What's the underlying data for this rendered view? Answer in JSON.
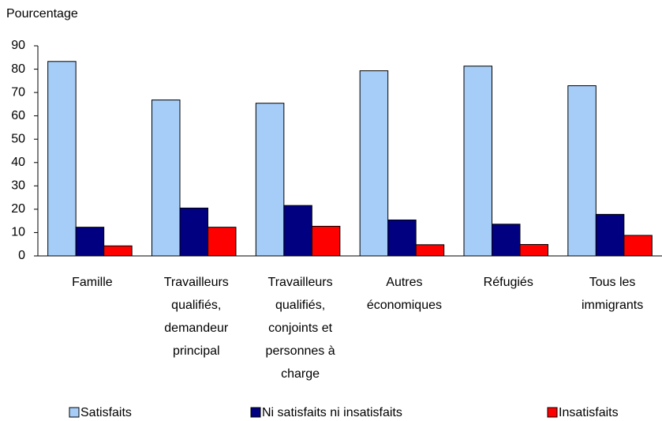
{
  "chart_data": {
    "type": "bar",
    "y_label": "Pourcentage",
    "categories": [
      [
        "Famille"
      ],
      [
        "Travailleurs",
        "qualifiés,",
        "demandeur",
        "principal"
      ],
      [
        "Travailleurs",
        "qualifiés,",
        "conjoints et",
        "personnes à",
        "charge"
      ],
      [
        "Autres",
        "économiques"
      ],
      [
        "Réfugiés"
      ],
      [
        "Tous les",
        "immigrants"
      ]
    ],
    "series": [
      {
        "name": "Satisfaits",
        "color": "#a6cdf7",
        "values": [
          83.3,
          66.8,
          65.4,
          79.3,
          81.3,
          72.9
        ]
      },
      {
        "name": "Ni satisfaits ni insatisfaits",
        "color": "#000080",
        "values": [
          12.3,
          20.5,
          21.6,
          15.4,
          13.6,
          17.8
        ]
      },
      {
        "name": "Insatisfaits",
        "color": "#ff0000",
        "values": [
          4.3,
          12.3,
          12.7,
          4.8,
          4.9,
          8.8
        ]
      }
    ],
    "ylim": [
      0,
      90
    ],
    "yticks": [
      0,
      10,
      20,
      30,
      40,
      50,
      60,
      70,
      80,
      90
    ],
    "grid": false,
    "legend": "bottom"
  }
}
